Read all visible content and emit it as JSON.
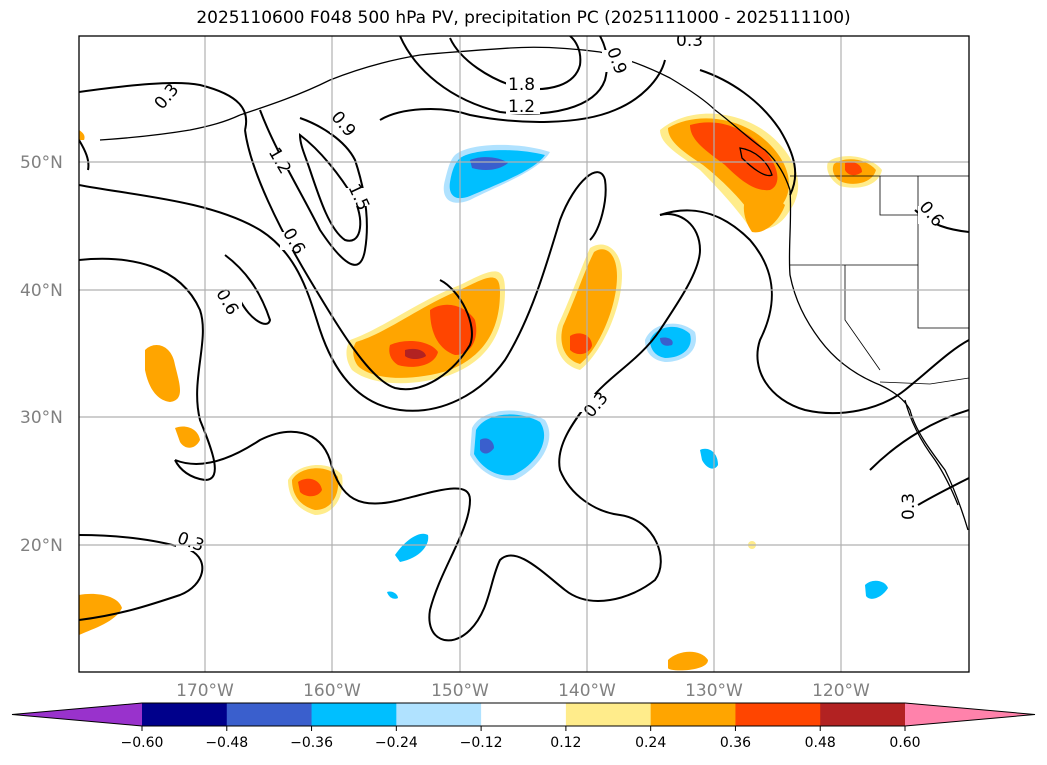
{
  "title": "2025110600 F048 500 hPa PV, precipitation PC (2025111000 - 2025111100)",
  "map": {
    "lon_labels": [
      "170°W",
      "160°W",
      "150°W",
      "140°W",
      "130°W",
      "120°W"
    ],
    "lat_labels": [
      "50°N",
      "40°N",
      "30°N",
      "20°N"
    ],
    "contour_labels": [
      "0.3",
      "0.9",
      "1.2",
      "1.8",
      "1.2",
      "1.5",
      "0.6",
      "0.6",
      "0.3",
      "0.3",
      "0.3",
      "0.6",
      "0.9",
      "0.3"
    ]
  },
  "colorbar": {
    "colors": [
      "#9932cc",
      "#00008b",
      "#3a5fcd",
      "#00bfff",
      "#b0e2ff",
      "#ffffff",
      "#ffec8b",
      "#ffa500",
      "#ff4500",
      "#b22222",
      "#ff82ab"
    ],
    "tick_labels": [
      "−0.60",
      "−0.48",
      "−0.36",
      "−0.24",
      "−0.12",
      "0.12",
      "0.24",
      "0.36",
      "0.48",
      "0.60"
    ]
  }
}
